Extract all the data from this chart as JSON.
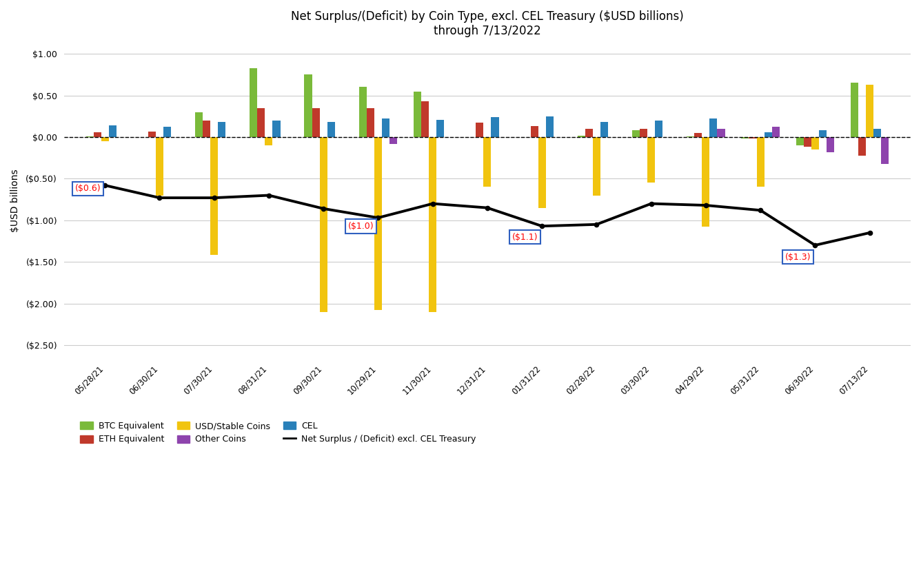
{
  "title_line1": "Net Surplus/(Deficit) by Coin Type, excl. CEL Treasury ($USD billions)",
  "title_line2": "through 7/13/2022",
  "ylabel": "$USD billions",
  "categories": [
    "05/28/21",
    "06/30/21",
    "07/30/21",
    "08/31/21",
    "09/30/21",
    "10/29/21",
    "11/30/21",
    "12/31/21",
    "01/31/22",
    "02/28/22",
    "03/30/22",
    "04/29/22",
    "05/31/22",
    "06/30/22",
    "07/13/22"
  ],
  "btc": [
    0.01,
    0.0,
    0.3,
    0.83,
    0.75,
    0.6,
    0.55,
    0.0,
    0.0,
    0.02,
    0.08,
    0.01,
    -0.02,
    -0.1,
    0.65
  ],
  "eth": [
    0.06,
    0.07,
    0.2,
    0.35,
    0.35,
    0.35,
    0.43,
    0.17,
    0.13,
    0.1,
    0.1,
    0.05,
    -0.02,
    -0.12,
    -0.22
  ],
  "usd": [
    -0.05,
    -0.7,
    -1.42,
    -0.1,
    -2.1,
    -2.08,
    -2.1,
    -0.6,
    -0.85,
    -0.7,
    -0.55,
    -1.08,
    -0.6,
    -0.15,
    0.63
  ],
  "cel": [
    0.14,
    0.12,
    0.18,
    0.2,
    0.18,
    0.22,
    0.21,
    0.24,
    0.25,
    0.18,
    0.2,
    0.22,
    0.06,
    0.08,
    0.1
  ],
  "other": [
    0.0,
    0.0,
    0.0,
    0.0,
    0.0,
    -0.08,
    0.0,
    0.0,
    0.0,
    0.0,
    0.0,
    0.1,
    0.12,
    -0.18,
    -0.32
  ],
  "net": [
    -0.58,
    -0.73,
    -0.73,
    -0.7,
    -0.86,
    -0.97,
    -0.8,
    -0.85,
    -1.07,
    -1.05,
    -0.8,
    -0.82,
    -0.88,
    -1.3,
    -1.15
  ],
  "colors": {
    "btc": "#7aba3a",
    "eth": "#c0392b",
    "usd": "#f1c40f",
    "cel": "#2980b9",
    "other": "#8e44ad",
    "net": "#000000"
  },
  "ylim": [
    -2.65,
    1.12
  ],
  "yticks": [
    1.0,
    0.5,
    0.0,
    -0.5,
    -1.0,
    -1.5,
    -2.0,
    -2.5
  ],
  "ytick_labels": [
    "$1.00",
    "$0.50",
    "$0.00",
    "($0.50)",
    "($1.00)",
    "($1.50)",
    "($2.00)",
    "($2.50)"
  ],
  "background_color": "#ffffff",
  "grid_color": "#cccccc",
  "bar_width": 0.14
}
